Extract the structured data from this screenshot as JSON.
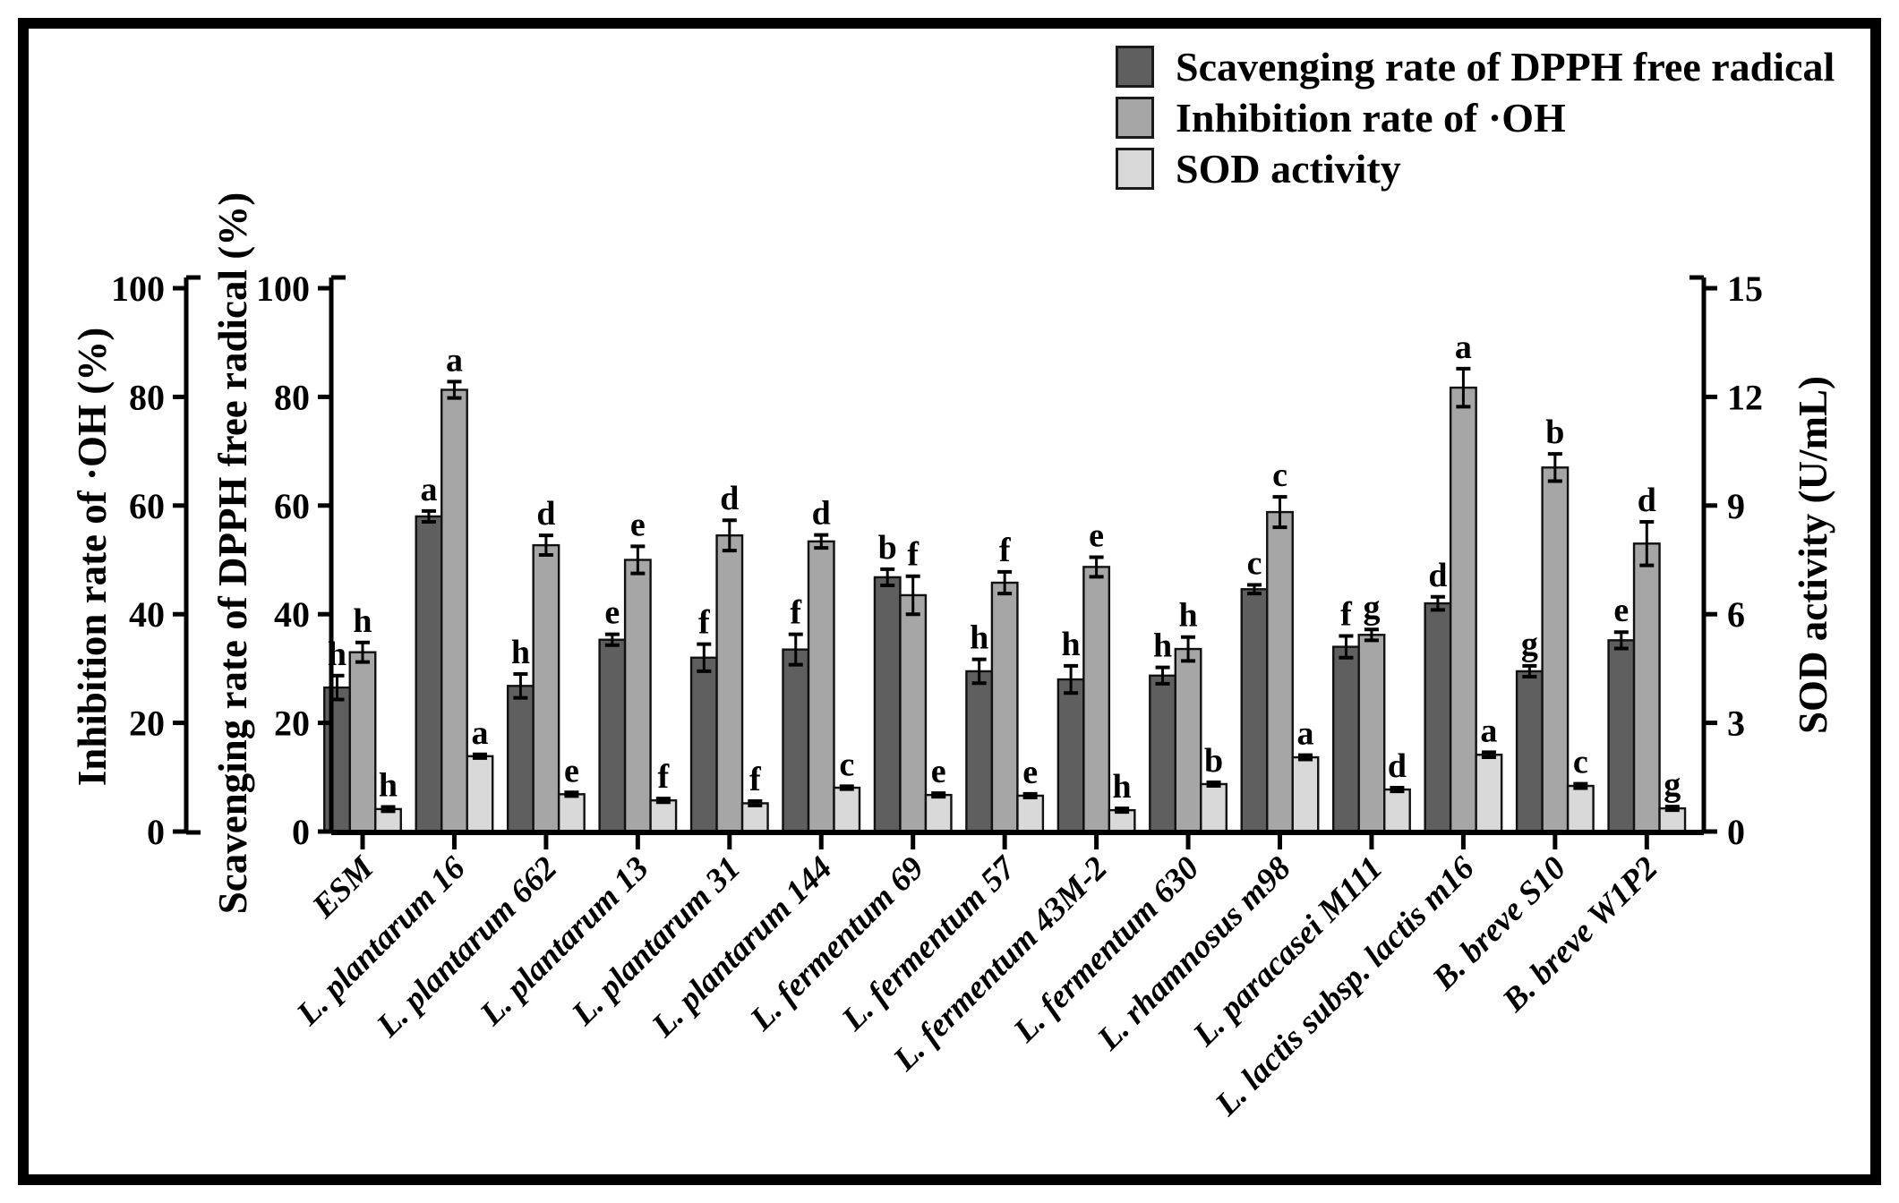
{
  "figure": {
    "background": "#ffffff",
    "border_color": "#000000",
    "border_width": 12
  },
  "chart_data": {
    "type": "bar",
    "title": "",
    "grid": false,
    "legend_position": "top-right",
    "categories": [
      "ESM",
      "L. plantarum 16",
      "L. plantarum 662",
      "L. plantarum 13",
      "L. plantarum 31",
      "L. plantarum 144",
      "L. fermentum 69",
      "L. fermentum 57",
      "L. fermentum 43M-2",
      "L. fermentum 630",
      "L. rhamnosus m98",
      "L. paracasei M111",
      "L. lactis subsp. lactis m16",
      "B. breve S10",
      "B. breve W1P2"
    ],
    "axes": {
      "oh_left": {
        "title": "Inhibition rate of ·OH (%)",
        "ticks": [
          0,
          20,
          40,
          60,
          80,
          100
        ],
        "range": [
          0,
          100
        ]
      },
      "dpph_left": {
        "title": "Scavenging rate of DPPH free radical (%)",
        "ticks": [
          0,
          20,
          40,
          60,
          80,
          100
        ],
        "range": [
          0,
          100
        ]
      },
      "sod_right": {
        "title": "SOD activity (U/mL)",
        "ticks": [
          0,
          3,
          6,
          9,
          12,
          15
        ],
        "range": [
          0,
          15
        ]
      }
    },
    "series": [
      {
        "name": "Scavenging rate of DPPH free radical",
        "axis": "percent",
        "unit": "%",
        "color": "#5f5f5f",
        "values": [
          26.5,
          58.0,
          26.8,
          35.3,
          32.0,
          33.5,
          46.8,
          29.5,
          28.0,
          28.7,
          44.6,
          34.0,
          42.0,
          29.5,
          35.2
        ],
        "errors": [
          2.2,
          1.0,
          2.2,
          1.0,
          2.5,
          2.8,
          1.5,
          2.2,
          2.5,
          1.5,
          0.8,
          2.0,
          1.2,
          1.0,
          1.5
        ],
        "sig_letters": [
          "h",
          "a",
          "h",
          "e",
          "f",
          "f",
          "b",
          "h",
          "h",
          "h",
          "c",
          "f",
          "d",
          "g",
          "e"
        ]
      },
      {
        "name": "Inhibition rate of ·OH",
        "axis": "percent",
        "unit": "%",
        "color": "#a6a6a6",
        "values": [
          33.0,
          81.3,
          52.7,
          50.0,
          54.5,
          53.4,
          43.5,
          45.8,
          48.7,
          33.6,
          58.8,
          36.2,
          81.7,
          67.0,
          53.0
        ],
        "errors": [
          1.8,
          1.5,
          1.8,
          2.5,
          2.8,
          1.2,
          3.5,
          2.0,
          1.8,
          2.2,
          2.8,
          1.0,
          3.5,
          2.5,
          4.0
        ],
        "sig_letters": [
          "h",
          "a",
          "d",
          "e",
          "d",
          "d",
          "f",
          "f",
          "e",
          "h",
          "c",
          "g",
          "a",
          "b",
          "d"
        ]
      },
      {
        "name": "SOD activity",
        "axis": "sod",
        "unit": "U/mL",
        "color": "#d9d9d9",
        "values": [
          0.62,
          2.08,
          1.03,
          0.86,
          0.78,
          1.21,
          1.01,
          0.99,
          0.59,
          1.31,
          2.05,
          1.16,
          2.12,
          1.26,
          0.64
        ],
        "errors": [
          0.06,
          0.05,
          0.05,
          0.05,
          0.06,
          0.04,
          0.05,
          0.05,
          0.05,
          0.05,
          0.06,
          0.05,
          0.07,
          0.06,
          0.05
        ],
        "sig_letters": [
          "h",
          "a",
          "e",
          "f",
          "f",
          "c",
          "e",
          "e",
          "h",
          "b",
          "a",
          "d",
          "a",
          "c",
          "g"
        ]
      }
    ]
  }
}
